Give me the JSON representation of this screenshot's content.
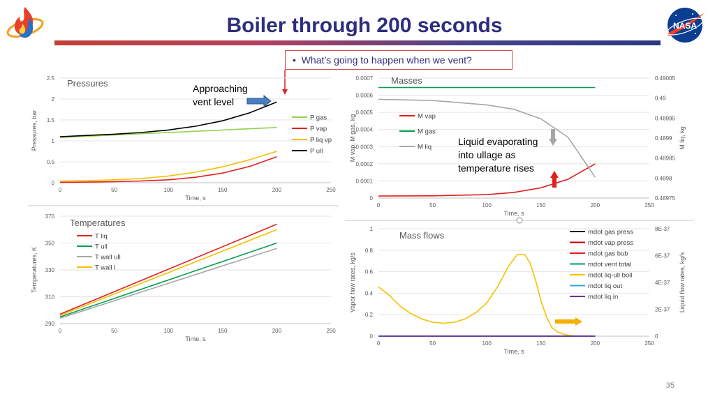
{
  "slide": {
    "title": "Boiler through 200 seconds",
    "callout": "What’s going to happen when we vent?",
    "callout_bullet": "•",
    "page_number": "35",
    "nasa_logo_text": "NASA",
    "note_vent": [
      "Approaching",
      "vent level"
    ],
    "note_liquid": [
      "Liquid evaporating",
      "into ullage as",
      "temperature rises"
    ]
  },
  "chart_data": [
    {
      "id": "pressures",
      "type": "line",
      "title": "Pressures",
      "xlabel": "Time, s",
      "ylabel": "Pressures, bar",
      "xlim": [
        0,
        250
      ],
      "ylim": [
        0,
        2.5
      ],
      "xticks": [
        "0",
        "50",
        "100",
        "150",
        "200",
        "250"
      ],
      "yticks": [
        "0",
        "0.5",
        "1",
        "1.5",
        "2",
        "2.5"
      ],
      "legend_position": "right",
      "grid": true,
      "series": [
        {
          "name": "P gas",
          "color": "#92d050",
          "x": [
            0,
            50,
            100,
            150,
            200
          ],
          "y": [
            1.08,
            1.14,
            1.2,
            1.26,
            1.32
          ]
        },
        {
          "name": "P vap",
          "color": "#e02020",
          "x": [
            0,
            25,
            50,
            75,
            100,
            125,
            150,
            175,
            200
          ],
          "y": [
            0.01,
            0.015,
            0.025,
            0.04,
            0.07,
            0.13,
            0.23,
            0.39,
            0.62
          ]
        },
        {
          "name": "P liq vp",
          "color": "#f5c000",
          "x": [
            0,
            25,
            50,
            75,
            100,
            125,
            150,
            175,
            200
          ],
          "y": [
            0.04,
            0.05,
            0.07,
            0.1,
            0.16,
            0.25,
            0.38,
            0.55,
            0.75
          ]
        },
        {
          "name": "P ull",
          "color": "#000000",
          "x": [
            0,
            25,
            50,
            75,
            100,
            125,
            150,
            175,
            200
          ],
          "y": [
            1.1,
            1.13,
            1.16,
            1.2,
            1.26,
            1.35,
            1.48,
            1.67,
            1.93
          ]
        }
      ]
    },
    {
      "id": "temperatures",
      "type": "line",
      "title": "Temperatures",
      "xlabel": "Time. s",
      "ylabel": "Temperatures, K",
      "xlim": [
        0,
        250
      ],
      "ylim": [
        290,
        370
      ],
      "xticks": [
        "0",
        "50",
        "100",
        "150",
        "200",
        "250"
      ],
      "yticks": [
        "290",
        "310",
        "330",
        "350",
        "370"
      ],
      "legend_position": "top-left",
      "grid": true,
      "series": [
        {
          "name": "T liq",
          "color": "#e02020",
          "x": [
            0,
            200
          ],
          "y": [
            297,
            364
          ]
        },
        {
          "name": "T ull",
          "color": "#00a050",
          "x": [
            0,
            200
          ],
          "y": [
            295,
            350
          ]
        },
        {
          "name": "T wall ull",
          "color": "#a6a6a6",
          "x": [
            0,
            200
          ],
          "y": [
            294,
            346
          ]
        },
        {
          "name": "T wall l",
          "color": "#f5c000",
          "x": [
            0,
            200
          ],
          "y": [
            296,
            360
          ]
        }
      ]
    },
    {
      "id": "masses",
      "type": "line",
      "title": "Masses",
      "xlabel": "Time, s",
      "ylabel": "M vap, M gas, kg",
      "y2label": "M liq, kg",
      "xlim": [
        0,
        250
      ],
      "ylim": [
        0,
        0.0007
      ],
      "y2lim": [
        0.48975,
        0.49005
      ],
      "xticks": [
        "0",
        "50",
        "100",
        "150",
        "200",
        "250"
      ],
      "yticks": [
        "0",
        "0.0001",
        "0.0002",
        "0.0003",
        "0.0004",
        "0.0005",
        "0.0006",
        "0.0007"
      ],
      "y2ticks": [
        "0.48975",
        "0.4898",
        "0.48985",
        "0.4899",
        "0.48995",
        "0.49",
        "0.49005"
      ],
      "legend_position": "left",
      "grid": true,
      "series": [
        {
          "name": "M vap",
          "color": "#e02020",
          "axis": "left",
          "x": [
            0,
            50,
            100,
            125,
            150,
            175,
            200
          ],
          "y": [
            1.2e-05,
            1.3e-05,
            2e-05,
            3.3e-05,
            6e-05,
            0.00011,
            0.0002
          ]
        },
        {
          "name": "M gas",
          "color": "#00a050",
          "axis": "left",
          "x": [
            0,
            200
          ],
          "y": [
            0.000645,
            0.000645
          ]
        },
        {
          "name": "M liq",
          "color": "#a6a6a6",
          "axis": "right",
          "x": [
            0,
            50,
            100,
            125,
            150,
            175,
            200
          ],
          "y": [
            0.489997,
            0.489994,
            0.489983,
            0.489972,
            0.489948,
            0.489902,
            0.489802
          ]
        }
      ]
    },
    {
      "id": "massflows",
      "type": "line",
      "title": "Mass flows",
      "xlabel": "Time, s",
      "ylabel": "Vapor flow rates, kg/s",
      "y2label": "Liquid flow rates, kg/s",
      "xlim": [
        0,
        250
      ],
      "ylim": [
        0,
        1
      ],
      "y2lim": [
        0,
        8e-37
      ],
      "xticks": [
        "0",
        "50",
        "100",
        "150",
        "200",
        "250"
      ],
      "yticks": [
        "0",
        "0.2",
        "0.4",
        "0.6",
        "0.8",
        "1"
      ],
      "y2ticks": [
        "0",
        "2E-37",
        "4E-37",
        "6E-37",
        "8E-37"
      ],
      "legend_position": "right",
      "grid": true,
      "series": [
        {
          "name": "mdot gas press",
          "color": "#000000",
          "x": [
            0,
            200
          ],
          "y": [
            0,
            0
          ]
        },
        {
          "name": "mdot vap press",
          "color": "#c00000",
          "x": [
            0,
            200
          ],
          "y": [
            0,
            0
          ]
        },
        {
          "name": "mdot gas bub",
          "color": "#e02020",
          "x": [
            0,
            200
          ],
          "y": [
            0,
            0
          ]
        },
        {
          "name": "mdot vent total",
          "color": "#00a050",
          "x": [
            0,
            200
          ],
          "y": [
            0,
            0
          ]
        },
        {
          "name": "mdot liq-ull boil",
          "color": "#f5c000",
          "x": [
            0,
            10,
            20,
            30,
            40,
            50,
            60,
            70,
            80,
            90,
            100,
            110,
            120,
            128,
            135,
            140,
            145,
            150,
            155,
            160,
            165,
            170,
            175,
            180,
            185
          ],
          "y": [
            0.46,
            0.38,
            0.28,
            0.21,
            0.16,
            0.13,
            0.12,
            0.13,
            0.16,
            0.22,
            0.31,
            0.46,
            0.65,
            0.76,
            0.76,
            0.68,
            0.52,
            0.33,
            0.18,
            0.08,
            0.04,
            0.02,
            0.01,
            0.005,
            0
          ]
        },
        {
          "name": "mdot liq out",
          "color": "#3ba0e0",
          "x": [
            0,
            200
          ],
          "y": [
            0,
            0
          ]
        },
        {
          "name": "mdot liq in",
          "color": "#7030a0",
          "x": [
            0,
            200
          ],
          "y": [
            0,
            0
          ]
        }
      ]
    }
  ]
}
